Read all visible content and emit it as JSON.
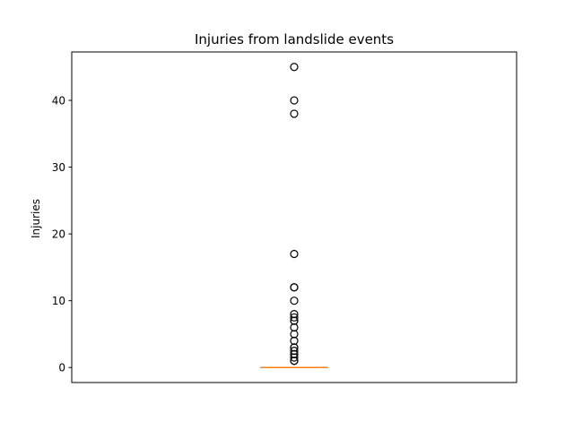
{
  "chart_data": {
    "type": "boxplot",
    "title": "Injuries from landslide events",
    "xlabel": "",
    "ylabel": "Injuries",
    "ylim": [
      -2.25,
      47.25
    ],
    "yticks": [
      0,
      10,
      20,
      30,
      40
    ],
    "x_ticks_shown": false,
    "grid": false,
    "box": {
      "q1": 0,
      "median": 0,
      "q3": 0,
      "whisker_low": 0,
      "whisker_high": 0
    },
    "outliers": [
      1,
      1,
      1.5,
      2,
      2,
      2.5,
      3,
      3,
      4,
      5,
      6,
      7,
      7,
      7.5,
      8,
      10,
      12,
      12,
      17,
      38,
      40,
      45
    ],
    "colors": {
      "median": "#ff7f0e",
      "box": "#000000",
      "outlier_edge": "#000000"
    }
  }
}
